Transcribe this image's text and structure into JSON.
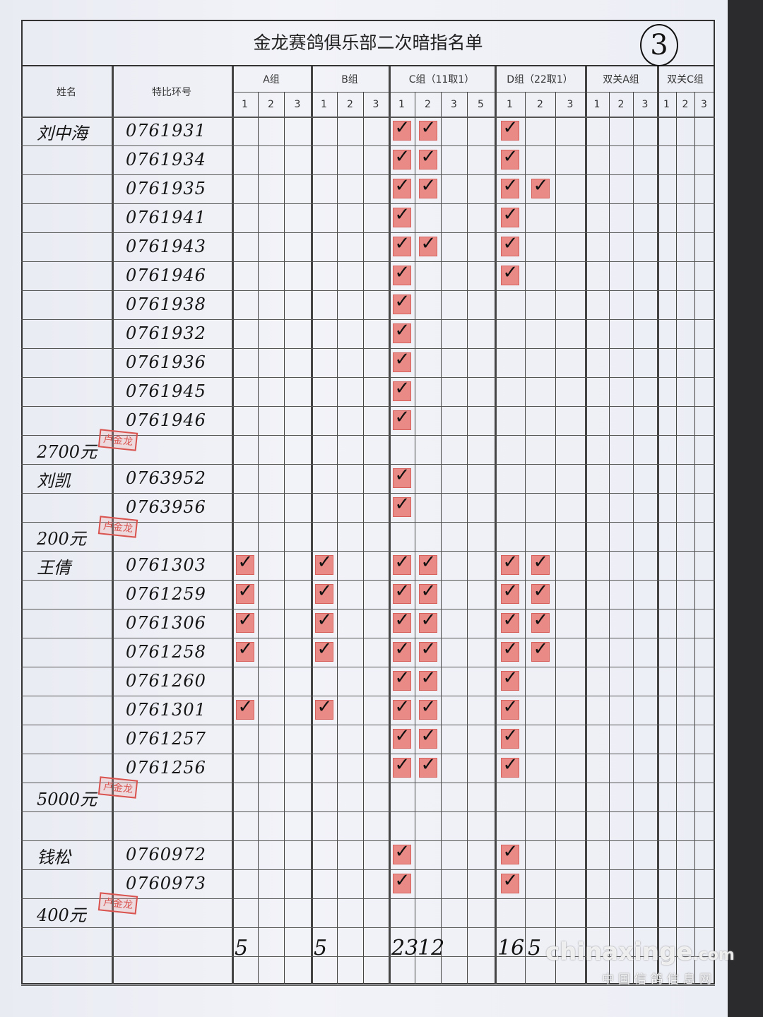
{
  "title": "金龙赛鸽俱乐部二次暗指名单",
  "page_number": "3",
  "headers": {
    "name": "姓名",
    "ring": "特比环号",
    "groups": [
      {
        "label": "A组",
        "subs": [
          "1",
          "2",
          "3"
        ]
      },
      {
        "label": "B组",
        "subs": [
          "1",
          "2",
          "3"
        ]
      },
      {
        "label": "C组（11取1）",
        "subs": [
          "1",
          "2",
          "3",
          "5"
        ]
      },
      {
        "label": "D组（22取1）",
        "subs": [
          "1",
          "2",
          "3"
        ]
      },
      {
        "label": "双关A组",
        "subs": [
          "1",
          "2",
          "3"
        ]
      },
      {
        "label": "双关C组",
        "subs": [
          "1",
          "2",
          "3"
        ]
      }
    ]
  },
  "rows": [
    {
      "name": "刘中海",
      "ring": "0761931",
      "marks": [
        "C1",
        "C2",
        "D1"
      ]
    },
    {
      "name": "",
      "ring": "0761934",
      "marks": [
        "C1",
        "C2",
        "D1"
      ]
    },
    {
      "name": "",
      "ring": "0761935",
      "marks": [
        "C1",
        "C2",
        "D1",
        "D2"
      ]
    },
    {
      "name": "",
      "ring": "0761941",
      "marks": [
        "C1",
        "D1"
      ]
    },
    {
      "name": "",
      "ring": "0761943",
      "marks": [
        "C1",
        "C2",
        "D1"
      ]
    },
    {
      "name": "",
      "ring": "0761946",
      "marks": [
        "C1",
        "D1"
      ]
    },
    {
      "name": "",
      "ring": "0761938",
      "marks": [
        "C1"
      ]
    },
    {
      "name": "",
      "ring": "0761932",
      "marks": [
        "C1"
      ]
    },
    {
      "name": "",
      "ring": "0761936",
      "marks": [
        "C1"
      ]
    },
    {
      "name": "",
      "ring": "0761945",
      "marks": [
        "C1"
      ]
    },
    {
      "name": "",
      "ring": "0761946",
      "marks": [
        "C1"
      ]
    },
    {
      "name": "2700元",
      "ring": "",
      "marks": [],
      "stamp": "卢金龙"
    },
    {
      "name": "刘凯",
      "ring": "0763952",
      "marks": [
        "C1"
      ]
    },
    {
      "name": "",
      "ring": "0763956",
      "marks": [
        "C1"
      ]
    },
    {
      "name": "200元",
      "ring": "",
      "marks": [],
      "stamp": "卢金龙"
    },
    {
      "name": "王倩",
      "ring": "0761303",
      "marks": [
        "A1",
        "B1",
        "C1",
        "C2",
        "D1",
        "D2"
      ]
    },
    {
      "name": "",
      "ring": "0761259",
      "marks": [
        "A1",
        "B1",
        "C1",
        "C2",
        "D1",
        "D2"
      ]
    },
    {
      "name": "",
      "ring": "0761306",
      "marks": [
        "A1",
        "B1",
        "C1",
        "C2",
        "D1",
        "D2"
      ]
    },
    {
      "name": "",
      "ring": "0761258",
      "marks": [
        "A1",
        "B1",
        "C1",
        "C2",
        "D1",
        "D2"
      ]
    },
    {
      "name": "",
      "ring": "0761260",
      "marks": [
        "C1",
        "C2",
        "D1"
      ]
    },
    {
      "name": "",
      "ring": "0761301",
      "marks": [
        "A1",
        "B1",
        "C1",
        "C2",
        "D1"
      ]
    },
    {
      "name": "",
      "ring": "0761257",
      "marks": [
        "C1",
        "C2",
        "D1"
      ]
    },
    {
      "name": "",
      "ring": "0761256",
      "marks": [
        "C1",
        "C2",
        "D1"
      ]
    },
    {
      "name": "5000元",
      "ring": "",
      "marks": [],
      "stamp": "卢金龙"
    },
    {
      "name": "",
      "ring": "",
      "marks": []
    },
    {
      "name": "钱松",
      "ring": "0760972",
      "marks": [
        "C1",
        "D1"
      ]
    },
    {
      "name": "",
      "ring": "0760973",
      "marks": [
        "C1",
        "D1"
      ]
    },
    {
      "name": "400元",
      "ring": "",
      "marks": [],
      "stamp": "卢金龙"
    },
    {
      "name": "",
      "ring": "",
      "marks": [],
      "totals": {
        "A1": "5",
        "B1": "5",
        "C1": "23",
        "C2": "12",
        "D1": "16",
        "D2": "5"
      }
    },
    {
      "name": "",
      "ring": "",
      "marks": []
    }
  ],
  "colors": {
    "stamp": "#d9534f",
    "mark_fill": "#e98a86"
  },
  "watermark": {
    "site": "chinaxinge",
    "tld": ".com",
    "subtitle": "中国信鸽信息网"
  }
}
